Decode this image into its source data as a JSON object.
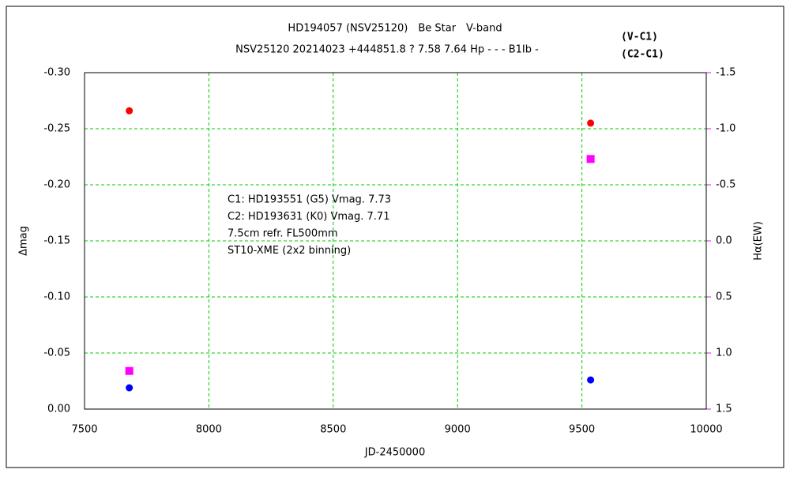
{
  "chart_data": {
    "type": "scatter",
    "title": "HD194057 (NSV25120)　Be Star　V-band",
    "subtitle": "NSV25120 20214023 +444851.8 ? 7.58 7.64 Hp - - - B1Ib -",
    "xlabel": "JD-2450000",
    "ylabel": "Δmag",
    "y2label": "Hα(EW)",
    "y2label_color": "#ff00ff",
    "annotations": [
      "C1: HD193551 (G5) Vmag. 7.73",
      "C2: HD193631 (K0) Vmag. 7.71",
      "7.5cm refr. FL500mm",
      "ST10-XME (2x2 binning)"
    ],
    "xlim": [
      7500,
      10000
    ],
    "xticks": [
      7500,
      8000,
      8500,
      9000,
      9500,
      10000
    ],
    "ylim": [
      -0.3,
      0
    ],
    "invert_y": true,
    "yticks": [
      {
        "value": -0.3,
        "label": "-0.30"
      },
      {
        "value": -0.25,
        "label": "-0.25"
      },
      {
        "value": -0.2,
        "label": "-0.20"
      },
      {
        "value": -0.15,
        "label": "-0.15"
      },
      {
        "value": -0.1,
        "label": "-0.10"
      },
      {
        "value": -0.05,
        "label": "-0.05"
      },
      {
        "value": 0,
        "label": "0.00"
      }
    ],
    "y2lim": [
      -1.5,
      1.5
    ],
    "invert_y2": true,
    "y2ticks": [
      {
        "value": -1.5,
        "label": "-1.5"
      },
      {
        "value": -1,
        "label": "-1.0"
      },
      {
        "value": -0.5,
        "label": "-0.5"
      },
      {
        "value": 0,
        "label": "0.0"
      },
      {
        "value": 0.5,
        "label": "0.5"
      },
      {
        "value": 1,
        "label": "1.0"
      },
      {
        "value": 1.5,
        "label": "1.5"
      }
    ],
    "grid": true,
    "legend": "top-right",
    "series": [
      {
        "name": "(V-C1)",
        "color": "#ff0000",
        "marker": "circle",
        "x": [
          7680,
          9535
        ],
        "values": [
          -0.266,
          -0.255
        ]
      },
      {
        "name": "(C2-C1)",
        "color": "#0000ff",
        "marker": "circle",
        "x": [
          7680,
          9535
        ],
        "values": [
          -0.019,
          -0.026
        ]
      },
      {
        "color": "#ff00ff",
        "marker": "square",
        "axis": "y2",
        "x": [
          7680,
          9535
        ],
        "values": [
          1.16,
          -0.73
        ]
      }
    ]
  }
}
